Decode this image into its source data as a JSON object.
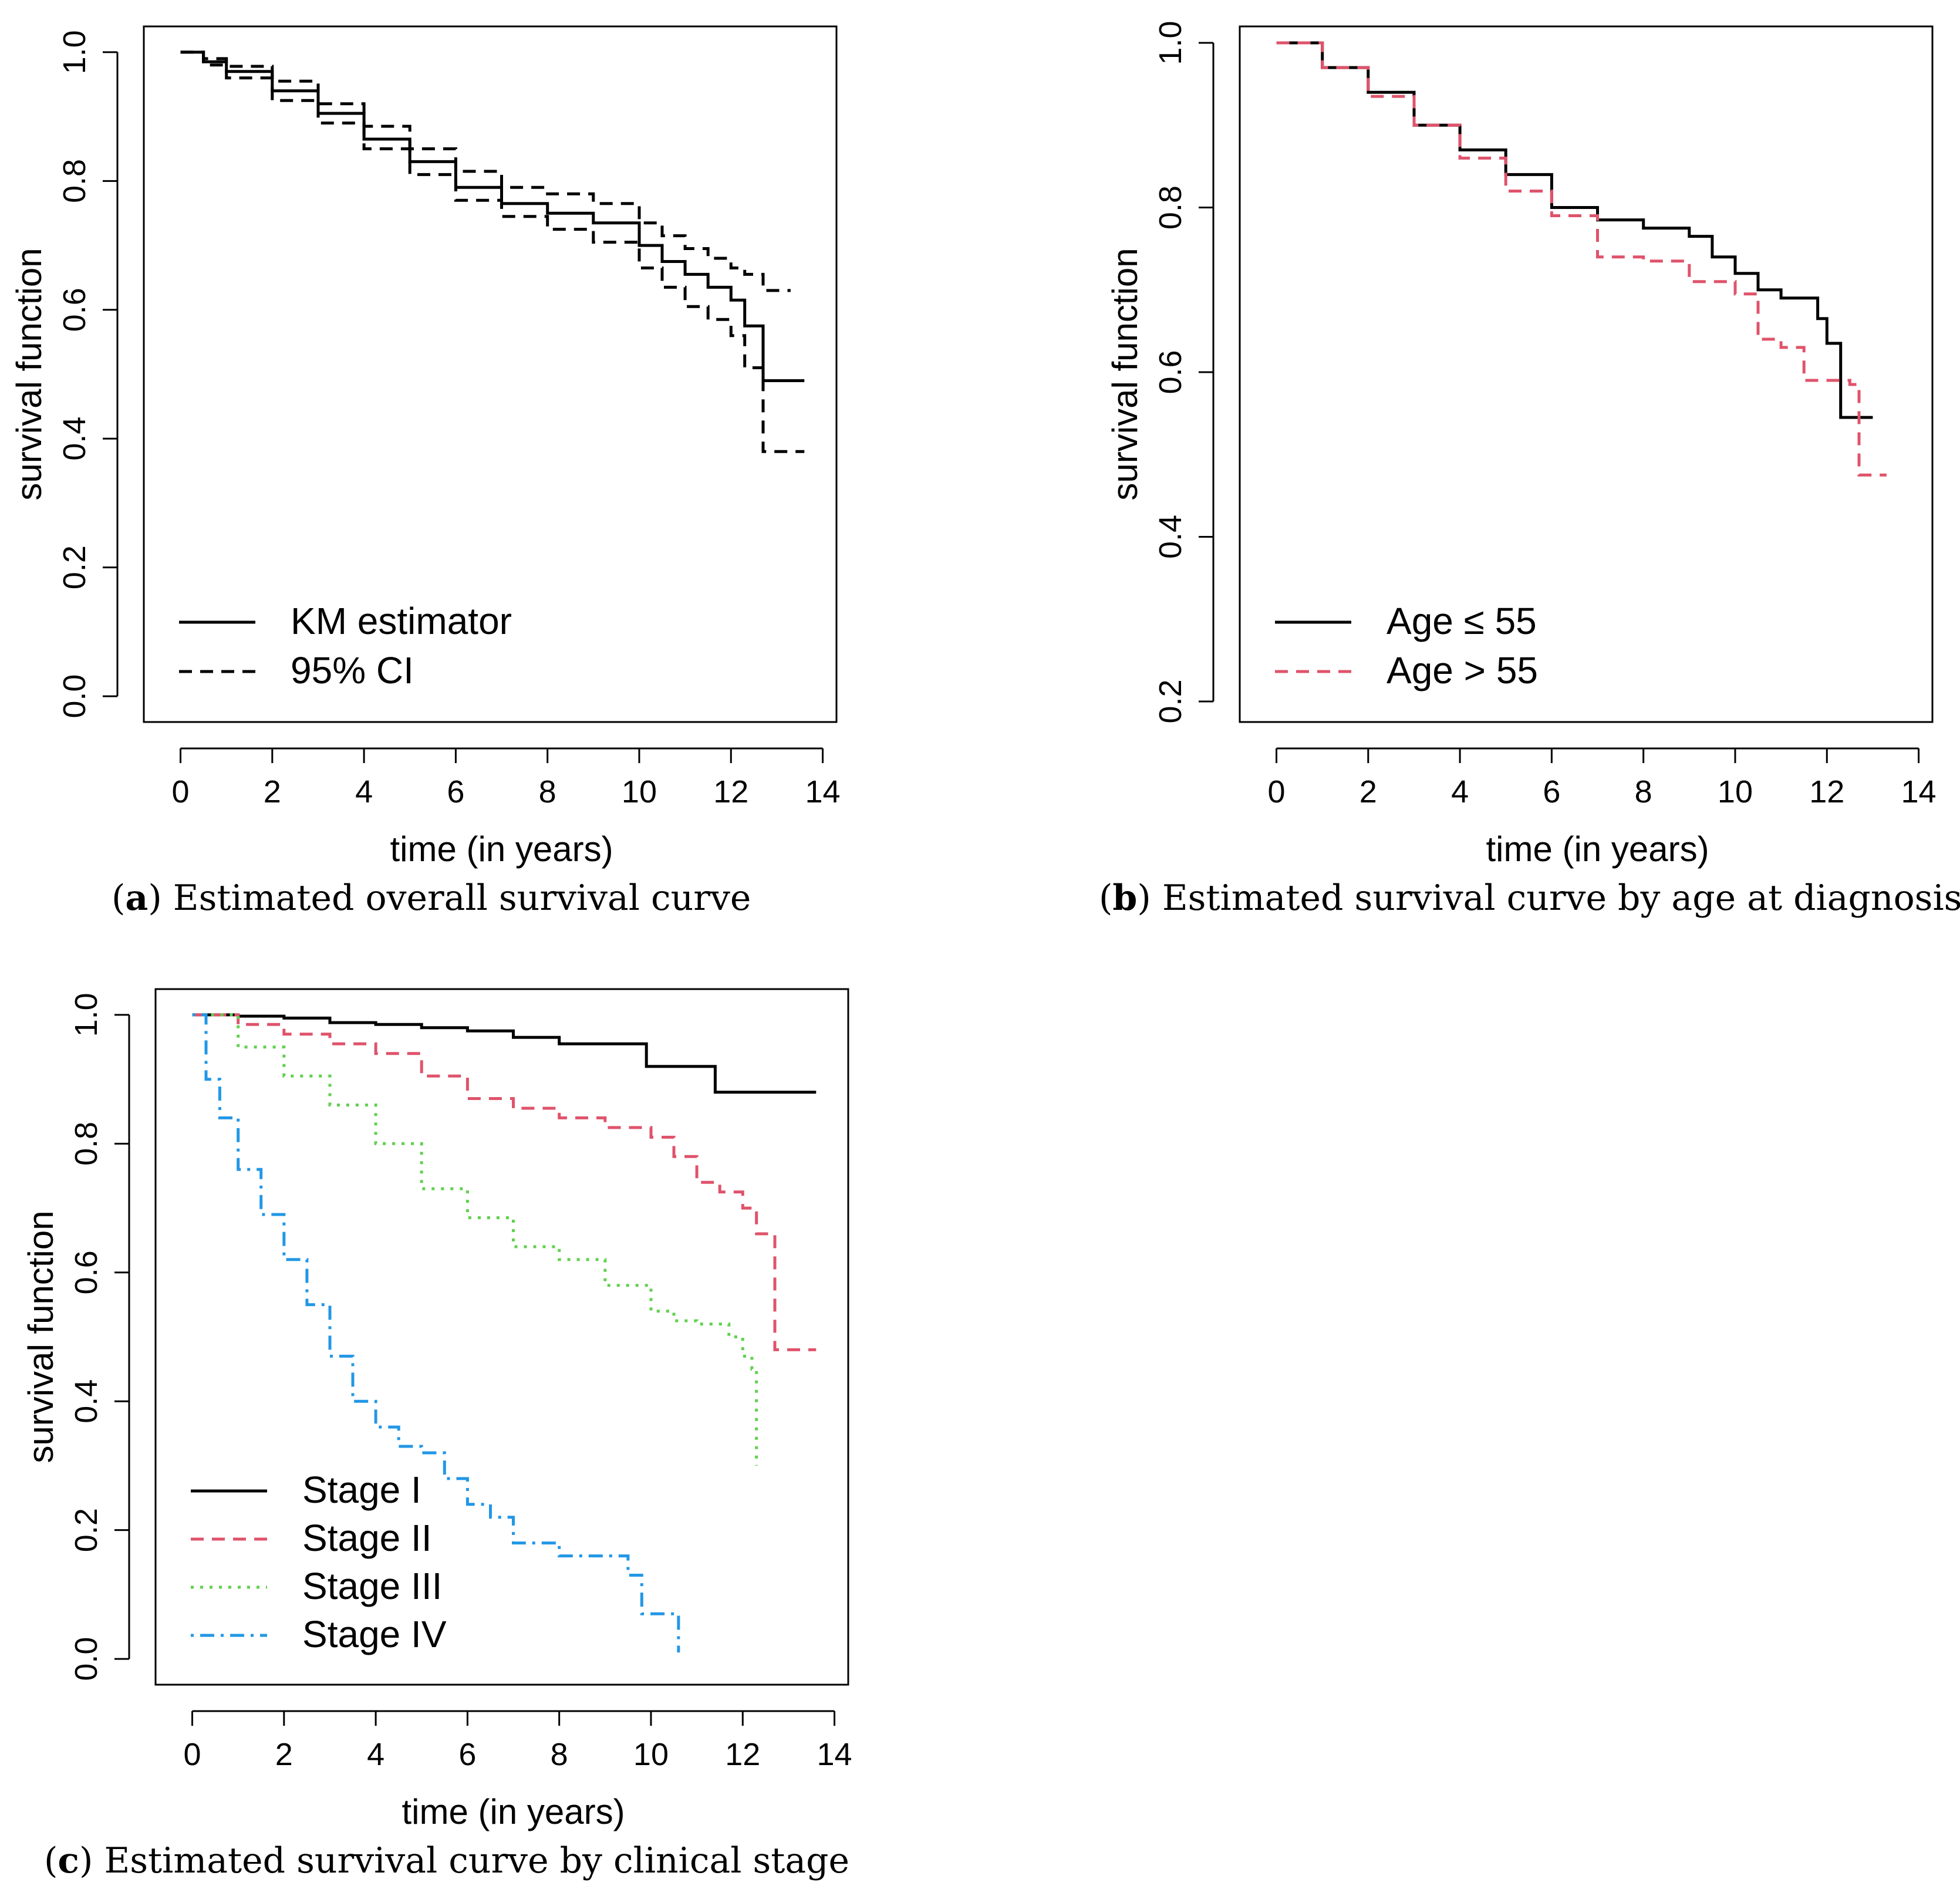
{
  "figure": {
    "panels": [
      {
        "id": "a",
        "caption_tag": "a",
        "caption_text": "Estimated overall survival curve"
      },
      {
        "id": "b",
        "caption_tag": "b",
        "caption_text": "Estimated survival curve by age at diagnosis"
      },
      {
        "id": "c",
        "caption_tag": "c",
        "caption_text": "Estimated survival curve by clinical stage"
      }
    ]
  },
  "chart_data": [
    {
      "id": "a",
      "type": "line",
      "step": true,
      "xlabel": "time (in years)",
      "ylabel": "survival function",
      "xlim": [
        -0.8,
        14.3
      ],
      "ylim": [
        -0.04,
        1.04
      ],
      "xticks": [
        0,
        2,
        4,
        6,
        8,
        10,
        12,
        14
      ],
      "yticks": [
        0.0,
        0.2,
        0.4,
        0.6,
        0.8,
        1.0
      ],
      "ytick_labels": [
        "0.0",
        "0.2",
        "0.4",
        "0.6",
        "0.8",
        "1.0"
      ],
      "legend_position": "bottom-left",
      "series": [
        {
          "name": "KM estimator",
          "color": "#000000",
          "dash": "solid",
          "x": [
            0,
            0.5,
            1,
            2,
            3,
            4,
            5,
            6,
            7,
            8,
            9,
            10,
            10.5,
            11,
            11.5,
            12,
            12.3,
            12.7,
            13.6
          ],
          "y": [
            1.0,
            0.985,
            0.97,
            0.94,
            0.905,
            0.865,
            0.83,
            0.79,
            0.765,
            0.75,
            0.735,
            0.7,
            0.675,
            0.655,
            0.635,
            0.615,
            0.575,
            0.49,
            0.49
          ]
        },
        {
          "name": "95% CI",
          "color": "#000000",
          "dash": "dashed",
          "x": [
            0,
            0.5,
            1,
            2,
            3,
            4,
            5,
            6,
            7,
            8,
            9,
            10,
            10.5,
            11,
            11.5,
            12,
            12.3,
            12.7,
            13.3
          ],
          "y": [
            1.0,
            0.99,
            0.978,
            0.955,
            0.92,
            0.885,
            0.85,
            0.815,
            0.79,
            0.78,
            0.765,
            0.735,
            0.715,
            0.695,
            0.68,
            0.665,
            0.655,
            0.63,
            0.63
          ]
        },
        {
          "name": "95% CI (lower)",
          "legend": false,
          "color": "#000000",
          "dash": "dashed",
          "x": [
            0,
            0.5,
            1,
            2,
            3,
            4,
            5,
            6,
            7,
            8,
            9,
            10,
            10.5,
            11,
            11.5,
            12,
            12.3,
            12.7,
            13.6
          ],
          "y": [
            1.0,
            0.98,
            0.96,
            0.925,
            0.89,
            0.85,
            0.81,
            0.77,
            0.745,
            0.725,
            0.705,
            0.665,
            0.635,
            0.605,
            0.585,
            0.56,
            0.51,
            0.38,
            0.38
          ]
        }
      ],
      "legend_items": [
        {
          "label": "KM estimator",
          "color": "#000000",
          "dash": "solid"
        },
        {
          "label": "95% CI",
          "color": "#000000",
          "dash": "dashed"
        }
      ]
    },
    {
      "id": "b",
      "type": "line",
      "step": true,
      "xlabel": "time (in years)",
      "ylabel": "survival function",
      "xlim": [
        -0.8,
        14.3
      ],
      "ylim": [
        0.175,
        1.02
      ],
      "xticks": [
        0,
        2,
        4,
        6,
        8,
        10,
        12,
        14
      ],
      "yticks": [
        0.2,
        0.4,
        0.6,
        0.8,
        1.0
      ],
      "ytick_labels": [
        "0.2",
        "0.4",
        "0.6",
        "0.8",
        "1.0"
      ],
      "legend_position": "bottom-left",
      "series": [
        {
          "name": "Age ≤ 55",
          "color": "#000000",
          "dash": "solid",
          "x": [
            0,
            1,
            2,
            3,
            4,
            5,
            6,
            7,
            8,
            9,
            9.5,
            10,
            10.5,
            11,
            11.5,
            11.8,
            12,
            12.3,
            13.0
          ],
          "y": [
            1.0,
            0.97,
            0.94,
            0.9,
            0.87,
            0.84,
            0.8,
            0.785,
            0.775,
            0.765,
            0.74,
            0.72,
            0.7,
            0.69,
            0.69,
            0.665,
            0.635,
            0.545,
            0.545
          ]
        },
        {
          "name": "Age > 55",
          "color": "#DF536B",
          "dash": "dashed",
          "x": [
            0,
            1,
            2,
            3,
            4,
            5,
            6,
            7,
            8,
            9,
            10,
            10.5,
            11,
            11.5,
            12,
            12.5,
            12.7,
            13.3
          ],
          "y": [
            1.0,
            0.97,
            0.935,
            0.9,
            0.86,
            0.82,
            0.79,
            0.74,
            0.735,
            0.71,
            0.695,
            0.64,
            0.63,
            0.59,
            0.59,
            0.585,
            0.475,
            0.475
          ]
        }
      ],
      "legend_items": [
        {
          "label": "Age ≤ 55",
          "color": "#000000",
          "dash": "solid"
        },
        {
          "label": "Age > 55",
          "color": "#DF536B",
          "dash": "dashed"
        }
      ]
    },
    {
      "id": "c",
      "type": "line",
      "step": true,
      "xlabel": "time (in years)",
      "ylabel": "survival function",
      "xlim": [
        -0.8,
        14.3
      ],
      "ylim": [
        -0.04,
        1.04
      ],
      "xticks": [
        0,
        2,
        4,
        6,
        8,
        10,
        12,
        14
      ],
      "yticks": [
        0.0,
        0.2,
        0.4,
        0.6,
        0.8,
        1.0
      ],
      "ytick_labels": [
        "0.0",
        "0.2",
        "0.4",
        "0.6",
        "0.8",
        "1.0"
      ],
      "legend_position": "bottom-left",
      "series": [
        {
          "name": "Stage I",
          "color": "#000000",
          "dash": "solid",
          "x": [
            0,
            1,
            2,
            3,
            4,
            5,
            6,
            7,
            8,
            9,
            9.9,
            11.4,
            13.6
          ],
          "y": [
            1.0,
            0.998,
            0.995,
            0.988,
            0.985,
            0.98,
            0.975,
            0.965,
            0.955,
            0.955,
            0.92,
            0.88,
            0.88
          ]
        },
        {
          "name": "Stage II",
          "color": "#DF536B",
          "dash": "dashed",
          "x": [
            0,
            1,
            2,
            3,
            4,
            5,
            6,
            7,
            8,
            9,
            10,
            10.5,
            11,
            11.5,
            12,
            12.3,
            12.7,
            13.6
          ],
          "y": [
            1.0,
            0.985,
            0.97,
            0.955,
            0.94,
            0.905,
            0.87,
            0.855,
            0.84,
            0.825,
            0.81,
            0.78,
            0.74,
            0.725,
            0.7,
            0.66,
            0.48,
            0.48
          ]
        },
        {
          "name": "Stage III",
          "color": "#61D04F",
          "dash": "dotted",
          "x": [
            0,
            1,
            2,
            3,
            4,
            5,
            6,
            7,
            8,
            9,
            10,
            10.5,
            11,
            11.7,
            12.0,
            12.2,
            12.3
          ],
          "y": [
            1.0,
            0.95,
            0.905,
            0.86,
            0.8,
            0.73,
            0.685,
            0.64,
            0.62,
            0.58,
            0.54,
            0.525,
            0.52,
            0.5,
            0.47,
            0.45,
            0.3
          ]
        },
        {
          "name": "Stage IV",
          "color": "#2297E6",
          "dash": "dotdash",
          "x": [
            0,
            0.3,
            0.6,
            1,
            1.5,
            2,
            2.5,
            3,
            3.5,
            4,
            4.5,
            5,
            5.5,
            6,
            6.5,
            7,
            8,
            9,
            9.5,
            9.8,
            10.3,
            10.6,
            10.6
          ],
          "y": [
            1.0,
            0.9,
            0.84,
            0.76,
            0.69,
            0.62,
            0.55,
            0.47,
            0.4,
            0.36,
            0.33,
            0.32,
            0.28,
            0.24,
            0.22,
            0.18,
            0.16,
            0.16,
            0.13,
            0.07,
            0.07,
            0.07,
            0.01
          ]
        }
      ],
      "legend_items": [
        {
          "label": "Stage I",
          "color": "#000000",
          "dash": "solid"
        },
        {
          "label": "Stage II",
          "color": "#DF536B",
          "dash": "dashed"
        },
        {
          "label": "Stage III",
          "color": "#61D04F",
          "dash": "dotted"
        },
        {
          "label": "Stage IV",
          "color": "#2297E6",
          "dash": "dotdash"
        }
      ]
    }
  ]
}
